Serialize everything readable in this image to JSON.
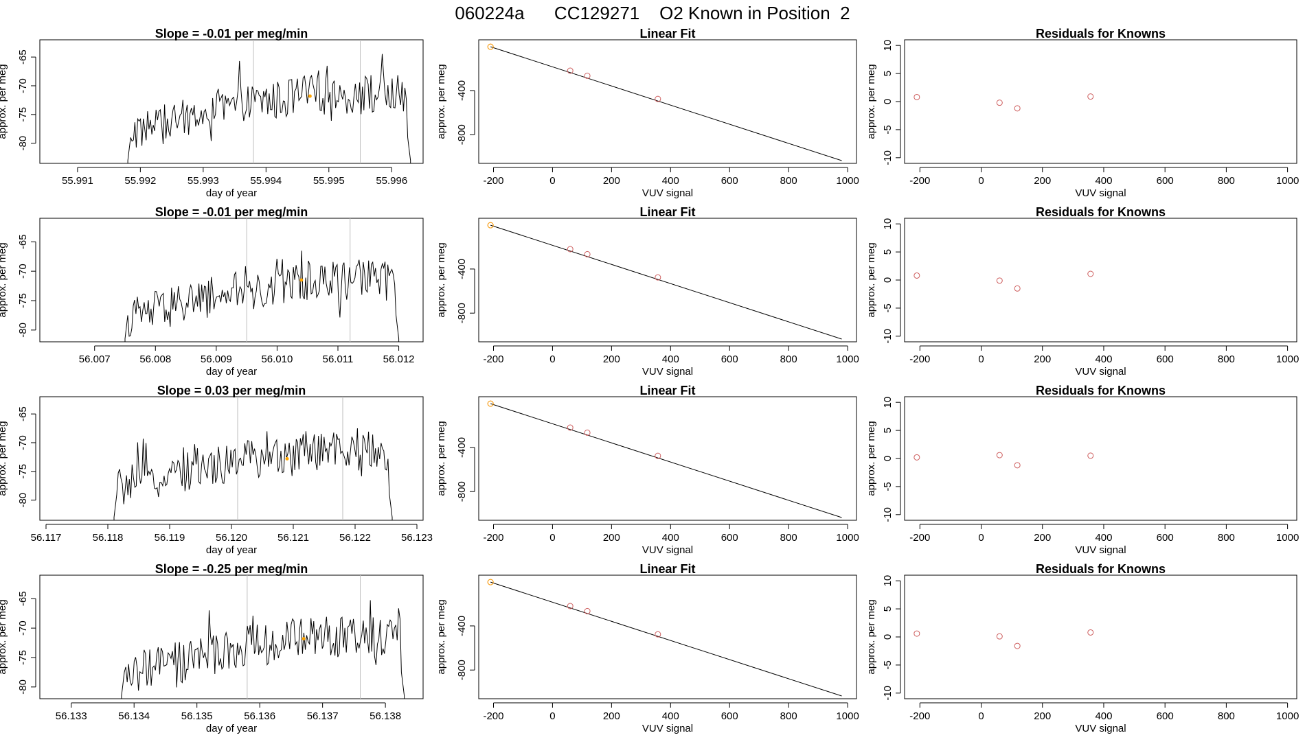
{
  "figure": {
    "title": "060224a      CC129271    O2 Known in Position  2"
  },
  "chart_data": [
    {
      "type": "line",
      "panel": "timeseries",
      "row": 0,
      "title": "Slope =  -0.01  per meg/min",
      "xlabel": "day of year",
      "ylabel": "approx. per meg",
      "xticks": [
        "55.991",
        "55.992",
        "55.993",
        "55.994",
        "55.995",
        "55.996"
      ],
      "xlim": [
        55.9904,
        55.9965
      ],
      "yticks": [
        -80,
        -75,
        -70,
        -65
      ],
      "ylim": [
        -83.5,
        -62
      ],
      "window": [
        55.9938,
        55.9955
      ],
      "data_start": 55.9918,
      "data_end": 55.9963,
      "marker_x": 55.9947,
      "marker_y": -71.8,
      "line_color": "#000000",
      "window_color": "#bebebe",
      "marker_color": "#ffa500"
    },
    {
      "type": "scatter",
      "panel": "linear-fit",
      "row": 0,
      "title": "Linear Fit",
      "xlabel": "VUV signal",
      "ylabel": "approx. per meg",
      "xticks": [
        -200,
        0,
        200,
        400,
        600,
        800,
        1000
      ],
      "xlim": [
        -250,
        1030
      ],
      "yticks": [
        -800,
        -400
      ],
      "ylim": [
        -1060,
        60
      ],
      "x": [
        -210,
        60,
        118,
        357
      ],
      "y": [
        -3,
        -220,
        -266,
        -476
      ],
      "line": [
        [
          -210,
          -3
        ],
        [
          980,
          -1035
        ]
      ],
      "point_color": "#cd5c5c",
      "highlight_color": "#ffa500"
    },
    {
      "type": "scatter",
      "panel": "residuals",
      "row": 0,
      "title": "Residuals for Knowns",
      "xlabel": "VUV signal",
      "ylabel": "approx. per meg",
      "xticks": [
        -200,
        0,
        200,
        400,
        600,
        800,
        1000
      ],
      "xlim": [
        -250,
        1030
      ],
      "yticks": [
        10,
        5,
        0,
        -5,
        -10
      ],
      "ylim": [
        -11,
        11
      ],
      "x": [
        -210,
        60,
        118,
        357
      ],
      "y": [
        0.8,
        -0.2,
        -1.2,
        0.9
      ],
      "point_color": "#cd5c5c"
    },
    {
      "type": "line",
      "panel": "timeseries",
      "row": 1,
      "title": "Slope =  -0.01  per meg/min",
      "xlabel": "day of year",
      "ylabel": "approx. per meg",
      "xticks": [
        "56.007",
        "56.008",
        "56.009",
        "56.010",
        "56.011",
        "56.012"
      ],
      "xlim": [
        56.0061,
        56.0124
      ],
      "yticks": [
        -80,
        -75,
        -70,
        -65
      ],
      "ylim": [
        -82,
        -61
      ],
      "window": [
        56.0095,
        56.0112
      ],
      "data_start": 56.0075,
      "data_end": 56.012,
      "marker_x": 56.0104,
      "marker_y": -71.5,
      "line_color": "#000000",
      "window_color": "#bebebe",
      "marker_color": "#ffa500"
    },
    {
      "type": "scatter",
      "panel": "linear-fit",
      "row": 1,
      "title": "Linear Fit",
      "xlabel": "VUV signal",
      "ylabel": "approx. per meg",
      "xticks": [
        -200,
        0,
        200,
        400,
        600,
        800,
        1000
      ],
      "xlim": [
        -250,
        1030
      ],
      "yticks": [
        -800,
        -400
      ],
      "ylim": [
        -1060,
        60
      ],
      "x": [
        -210,
        60,
        118,
        357
      ],
      "y": [
        -3,
        -220,
        -266,
        -476
      ],
      "line": [
        [
          -210,
          -3
        ],
        [
          980,
          -1035
        ]
      ],
      "point_color": "#cd5c5c",
      "highlight_color": "#ffa500"
    },
    {
      "type": "scatter",
      "panel": "residuals",
      "row": 1,
      "title": "Residuals for Knowns",
      "xlabel": "VUV signal",
      "ylabel": "approx. per meg",
      "xticks": [
        -200,
        0,
        200,
        400,
        600,
        800,
        1000
      ],
      "xlim": [
        -250,
        1030
      ],
      "yticks": [
        10,
        5,
        0,
        -5,
        -10
      ],
      "ylim": [
        -11,
        11
      ],
      "x": [
        -210,
        60,
        118,
        357
      ],
      "y": [
        0.8,
        -0.1,
        -1.5,
        1.1
      ],
      "point_color": "#cd5c5c"
    },
    {
      "type": "line",
      "panel": "timeseries",
      "row": 2,
      "title": "Slope =  0.03  per meg/min",
      "xlabel": "day of year",
      "ylabel": "approx. per meg",
      "xticks": [
        "56.117",
        "56.118",
        "56.119",
        "56.120",
        "56.121",
        "56.122",
        "56.123"
      ],
      "xlim": [
        56.1169,
        56.1231
      ],
      "yticks": [
        -80,
        -75,
        -70,
        -65
      ],
      "ylim": [
        -83.5,
        -62
      ],
      "window": [
        56.1201,
        56.1218
      ],
      "data_start": 56.1181,
      "data_end": 56.1226,
      "marker_x": 56.1209,
      "marker_y": -72.8,
      "line_color": "#000000",
      "window_color": "#bebebe",
      "marker_color": "#ffa500"
    },
    {
      "type": "scatter",
      "panel": "linear-fit",
      "row": 2,
      "title": "Linear Fit",
      "xlabel": "VUV signal",
      "ylabel": "approx. per meg",
      "xticks": [
        -200,
        0,
        200,
        400,
        600,
        800,
        1000
      ],
      "xlim": [
        -250,
        1030
      ],
      "yticks": [
        -800,
        -400
      ],
      "ylim": [
        -1060,
        60
      ],
      "x": [
        -210,
        60,
        118,
        357
      ],
      "y": [
        -3,
        -220,
        -266,
        -476
      ],
      "line": [
        [
          -210,
          -3
        ],
        [
          980,
          -1035
        ]
      ],
      "point_color": "#cd5c5c",
      "highlight_color": "#ffa500"
    },
    {
      "type": "scatter",
      "panel": "residuals",
      "row": 2,
      "title": "Residuals for Knowns",
      "xlabel": "VUV signal",
      "ylabel": "approx. per meg",
      "xticks": [
        -200,
        0,
        200,
        400,
        600,
        800,
        1000
      ],
      "xlim": [
        -250,
        1030
      ],
      "yticks": [
        10,
        5,
        0,
        -5,
        -10
      ],
      "ylim": [
        -11,
        11
      ],
      "x": [
        -210,
        60,
        118,
        357
      ],
      "y": [
        0.2,
        0.6,
        -1.2,
        0.5
      ],
      "point_color": "#cd5c5c"
    },
    {
      "type": "line",
      "panel": "timeseries",
      "row": 3,
      "title": "Slope =  -0.25  per meg/min",
      "xlabel": "day of year",
      "ylabel": "approx. per meg",
      "xticks": [
        "56.133",
        "56.134",
        "56.135",
        "56.136",
        "56.137",
        "56.138"
      ],
      "xlim": [
        56.1325,
        56.1386
      ],
      "yticks": [
        -80,
        -75,
        -70,
        -65
      ],
      "ylim": [
        -82,
        -61
      ],
      "window": [
        56.1358,
        56.1376
      ],
      "data_start": 56.1338,
      "data_end": 56.1383,
      "marker_x": 56.1367,
      "marker_y": -71.8,
      "line_color": "#000000",
      "window_color": "#bebebe",
      "marker_color": "#ffa500"
    },
    {
      "type": "scatter",
      "panel": "linear-fit",
      "row": 3,
      "title": "Linear Fit",
      "xlabel": "VUV signal",
      "ylabel": "approx. per meg",
      "xticks": [
        -200,
        0,
        200,
        400,
        600,
        800,
        1000
      ],
      "xlim": [
        -250,
        1030
      ],
      "yticks": [
        -800,
        -400
      ],
      "ylim": [
        -1060,
        60
      ],
      "x": [
        -210,
        60,
        118,
        357
      ],
      "y": [
        -3,
        -220,
        -266,
        -476
      ],
      "line": [
        [
          -210,
          -3
        ],
        [
          980,
          -1035
        ]
      ],
      "point_color": "#cd5c5c",
      "highlight_color": "#ffa500"
    },
    {
      "type": "scatter",
      "panel": "residuals",
      "row": 3,
      "title": "Residuals for Knowns",
      "xlabel": "VUV signal",
      "ylabel": "approx. per meg",
      "xticks": [
        -200,
        0,
        200,
        400,
        600,
        800,
        1000
      ],
      "xlim": [
        -250,
        1030
      ],
      "yticks": [
        10,
        5,
        0,
        -5,
        -10
      ],
      "ylim": [
        -11,
        11
      ],
      "x": [
        -210,
        60,
        118,
        357
      ],
      "y": [
        0.6,
        0.1,
        -1.6,
        0.8
      ],
      "point_color": "#cd5c5c"
    }
  ]
}
